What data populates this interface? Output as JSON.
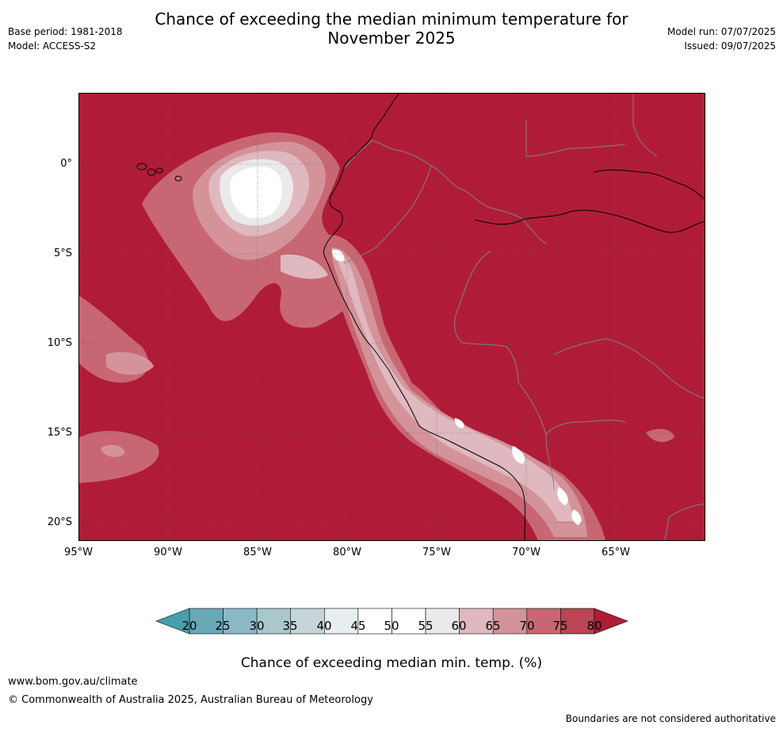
{
  "header": {
    "title_line1": "Chance of exceeding the median minimum temperature for",
    "title_line2": "November 2025",
    "base_period": "Base period: 1981-2018",
    "model": "Model: ACCESS-S2",
    "model_run": "Model run: 07/07/2025",
    "issued": "Issued: 09/07/2025"
  },
  "axes": {
    "lat_labels": [
      "0°",
      "5°S",
      "10°S",
      "15°S",
      "20°S"
    ],
    "lon_labels": [
      "95°W",
      "90°W",
      "85°W",
      "80°W",
      "75°W",
      "70°W",
      "65°W"
    ]
  },
  "colorbar": {
    "title": "Chance of exceeding median min. temp. (%)",
    "ticks": [
      "20",
      "25",
      "30",
      "35",
      "40",
      "45",
      "50",
      "55",
      "60",
      "65",
      "70",
      "75",
      "80"
    ],
    "colors": [
      "#67a9b6",
      "#8ab9c5",
      "#a9c8cc",
      "#c6d6d8",
      "#e8edf0",
      "#ffffff",
      "#ffffff",
      "#ebe9ea",
      "#dfb9bf",
      "#d4939a",
      "#c86773",
      "#bb4552"
    ],
    "low_extend": "#479fab",
    "high_extend": "#b01c38"
  },
  "map": {
    "background": "#b01c38",
    "lat_range": [
      -21,
      4
    ],
    "lon_range": [
      -95,
      -60
    ]
  },
  "footer": {
    "url": "www.bom.gov.au/climate",
    "copyright": "© Commonwealth of Australia 2025, Australian Bureau of Meteorology",
    "disclaimer": "Boundaries are not considered authoritative"
  }
}
